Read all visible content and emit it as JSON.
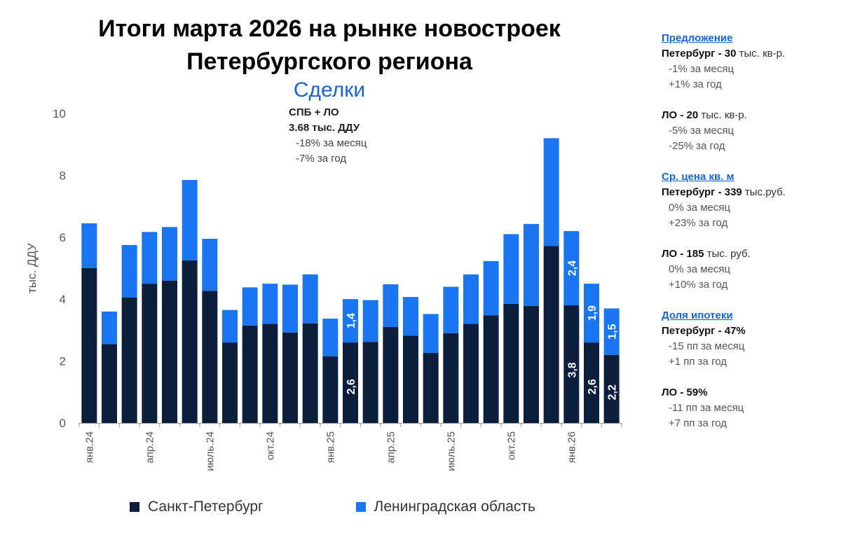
{
  "title_line1": "Итоги марта 2026 на рынке новостроек",
  "title_line2": "Петербургского региона",
  "subtitle": "Сделки",
  "summary": {
    "label": "СПБ + ЛО",
    "value": "3.68",
    "unit": " тыс. ДДУ",
    "mom": "-18% за месяц",
    "yoy": "-7% за год"
  },
  "colors": {
    "spb": "#0b1f3d",
    "lo": "#1976f0",
    "accent": "#1565d8"
  },
  "chart_data": {
    "type": "bar",
    "stacked": true,
    "ylabel": "тыс. ДДУ",
    "ylim": [
      0,
      10
    ],
    "yticks": [
      "0",
      "2",
      "4",
      "6",
      "8",
      "10"
    ],
    "categories": [
      "янв.24",
      "фев.24",
      "мар.24",
      "апр.24",
      "май.24",
      "июн.24",
      "июль.24",
      "авг.24",
      "сен.24",
      "окт.24",
      "ноя.24",
      "дек.24",
      "янв.25",
      "фев.25",
      "мар.25",
      "апр.25",
      "май.25",
      "июн.25",
      "июль.25",
      "авг.25",
      "сен.25",
      "окт.25",
      "ноя.25",
      "дек.25",
      "янв.26",
      "фев.26",
      "мар.26"
    ],
    "xtick_labels": [
      {
        "index": 0,
        "label": "янв.24"
      },
      {
        "index": 3,
        "label": "апр.24"
      },
      {
        "index": 6,
        "label": "июль.24"
      },
      {
        "index": 9,
        "label": "окт.24"
      },
      {
        "index": 12,
        "label": "янв.25"
      },
      {
        "index": 15,
        "label": "апр.25"
      },
      {
        "index": 18,
        "label": "июль.25"
      },
      {
        "index": 21,
        "label": "окт.25"
      },
      {
        "index": 24,
        "label": "янв.26"
      }
    ],
    "series": [
      {
        "name": "Санкт-Петербург",
        "values": [
          5.0,
          2.55,
          4.05,
          4.5,
          4.6,
          5.25,
          4.27,
          2.6,
          3.15,
          3.2,
          2.92,
          3.22,
          2.15,
          2.6,
          2.62,
          3.1,
          2.82,
          2.27,
          2.9,
          3.2,
          3.48,
          3.85,
          3.78,
          5.72,
          3.8,
          2.6,
          2.2
        ]
      },
      {
        "name": "Ленинградская область",
        "values": [
          1.45,
          1.05,
          1.7,
          1.67,
          1.73,
          2.6,
          1.68,
          1.05,
          1.23,
          1.3,
          1.55,
          1.58,
          1.22,
          1.4,
          1.35,
          1.38,
          1.25,
          1.25,
          1.5,
          1.6,
          1.75,
          2.25,
          2.65,
          3.48,
          2.4,
          1.9,
          1.5
        ]
      }
    ],
    "data_labels": [
      {
        "index": 13,
        "series": 0,
        "text": "2,6"
      },
      {
        "index": 13,
        "series": 1,
        "text": "1,4"
      },
      {
        "index": 24,
        "series": 0,
        "text": "3,8"
      },
      {
        "index": 24,
        "series": 1,
        "text": "2,4"
      },
      {
        "index": 25,
        "series": 0,
        "text": "2,6"
      },
      {
        "index": 25,
        "series": 1,
        "text": "1,9"
      },
      {
        "index": 26,
        "series": 0,
        "text": "2,2"
      },
      {
        "index": 26,
        "series": 1,
        "text": "1,5"
      }
    ],
    "grid": false,
    "legend": "bottom"
  },
  "sidebar": {
    "supply": {
      "heading": "Предложение",
      "spb": {
        "label": "Петербург - 30",
        "unit": " тыс. кв-р.",
        "mom": "-1% за месяц",
        "yoy": "+1% за год"
      },
      "lo": {
        "label": "ЛО - 20",
        "unit": " тыс. кв-р.",
        "mom": "-5% за месяц",
        "yoy": "-25% за год"
      }
    },
    "price": {
      "heading": "Ср. цена кв. м",
      "spb": {
        "label": "Петербург - 339",
        "unit": " тыс.руб.",
        "mom": "0% за месяц",
        "yoy": "+23% за год"
      },
      "lo": {
        "label": "ЛО - 185",
        "unit": " тыс. руб.",
        "mom": "0% за месяц",
        "yoy": "+10% за год"
      }
    },
    "mortgage": {
      "heading": "Доля ипотеки",
      "spb": {
        "label": "Петербург - 47%",
        "mom": "-15 пп за месяц",
        "yoy": "+1 пп за год"
      },
      "lo": {
        "label": "ЛО - 59%",
        "mom": "-11 пп за месяц",
        "yoy": "+7 пп за год"
      }
    }
  },
  "legend": {
    "spb": "Санкт-Петербург",
    "lo": "Ленинградская область"
  }
}
